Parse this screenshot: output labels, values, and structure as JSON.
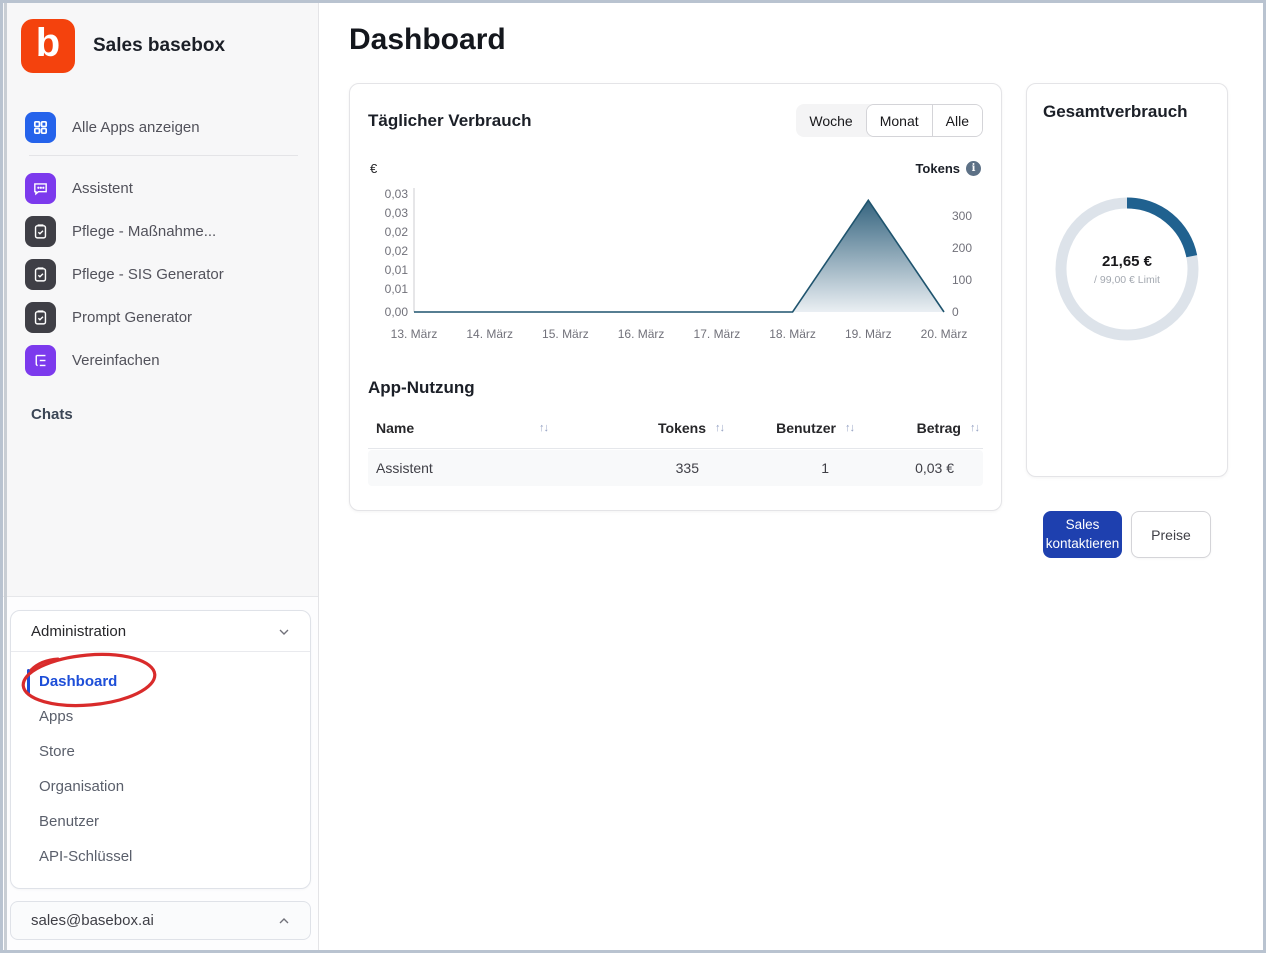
{
  "colors": {
    "brand_orange": "#f4420d",
    "icon_blue": "#2563eb",
    "icon_purple": "#7c3aed",
    "icon_dark": "#3f3f46",
    "active_link_blue": "#1d4ed8",
    "annotation_red": "#d92b2b",
    "button_blue": "#1e40af",
    "donut_blue": "#20618f",
    "donut_track": "#dde3ea",
    "chart_line": "#1f546e"
  },
  "sidebar": {
    "brand": {
      "logo_letter": "b",
      "title": "Sales basebox"
    },
    "show_all_apps": "Alle Apps anzeigen",
    "apps": [
      {
        "label": "Assistent",
        "icon": "chat-icon"
      },
      {
        "label": "Pflege - Maßnahme...",
        "icon": "clipboard-check-icon"
      },
      {
        "label": "Pflege - SIS Generator",
        "icon": "clipboard-check-icon"
      },
      {
        "label": "Prompt Generator",
        "icon": "clipboard-check-icon"
      },
      {
        "label": "Vereinfachen",
        "icon": "list-tree-icon"
      }
    ],
    "chats_label": "Chats",
    "admin": {
      "header": "Administration",
      "items": [
        "Dashboard",
        "Apps",
        "Store",
        "Organisation",
        "Benutzer",
        "API-Schlüssel"
      ],
      "active_item": "Dashboard"
    },
    "account": "sales@basebox.ai"
  },
  "main": {
    "page_title": "Dashboard",
    "usage_card": {
      "title": "Täglicher Verbrauch",
      "range_options": [
        "Woche",
        "Monat",
        "Alle"
      ],
      "range_active": "Woche",
      "left_axis_label": "€",
      "right_axis_label": "Tokens"
    },
    "app_usage": {
      "title": "App-Nutzung",
      "columns": [
        "Name",
        "Tokens",
        "Benutzer",
        "Betrag"
      ],
      "rows": [
        {
          "name": "Assistent",
          "tokens": "335",
          "benutzer": "1",
          "betrag": "0,03 €"
        }
      ]
    },
    "total_card": {
      "title": "Gesamtverbrauch",
      "value": "21,65 €",
      "limit": "/ 99,00 € Limit"
    },
    "buttons": {
      "contact_sales": "Sales kontaktieren",
      "pricing": "Preise"
    }
  },
  "chart_data": [
    {
      "type": "area",
      "title": "Täglicher Verbrauch",
      "x": [
        "13. März",
        "14. März",
        "15. März",
        "16. März",
        "17. März",
        "18. März",
        "19. März",
        "20. März"
      ],
      "series": [
        {
          "name": "Tokens",
          "values": [
            0,
            0,
            0,
            0,
            0,
            0,
            335,
            0
          ]
        }
      ],
      "left_axis": {
        "label": "€",
        "ticks": [
          "0,03",
          "0,03",
          "0,02",
          "0,02",
          "0,01",
          "0,01",
          "0,00"
        ],
        "range": [
          0,
          0.03
        ]
      },
      "right_axis": {
        "label": "Tokens",
        "ticks": [
          300,
          200,
          100,
          0
        ],
        "range": [
          0,
          350
        ]
      },
      "grid": false,
      "legend": "none"
    },
    {
      "type": "pie",
      "title": "Gesamtverbrauch",
      "value": 21.65,
      "limit": 99.0,
      "center_label": "21,65 €",
      "sub_label": "/ 99,00 € Limit"
    }
  ]
}
